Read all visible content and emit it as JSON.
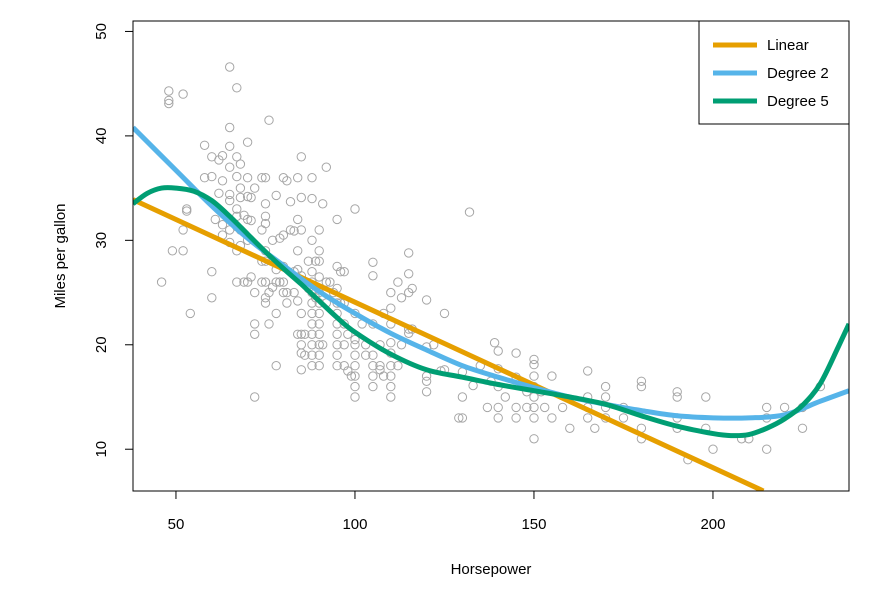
{
  "chart_data": {
    "type": "scatter",
    "xlabel": "Horsepower",
    "ylabel": "Miles per gallon",
    "xlim": [
      38,
      238
    ],
    "ylim": [
      6,
      51
    ],
    "x_ticks": [
      50,
      100,
      150,
      200
    ],
    "y_ticks": [
      10,
      20,
      30,
      40,
      50
    ],
    "grid": false,
    "legend_position": "top-right",
    "point_color": "#a6a6a6",
    "points": [
      [
        46,
        26
      ],
      [
        48,
        44.3
      ],
      [
        48,
        43.4
      ],
      [
        48,
        43.1
      ],
      [
        49,
        29
      ],
      [
        52,
        44
      ],
      [
        52,
        31
      ],
      [
        52,
        29
      ],
      [
        53,
        33
      ],
      [
        53,
        32.8
      ],
      [
        54,
        23
      ],
      [
        58,
        39.1
      ],
      [
        58,
        36
      ],
      [
        60,
        38
      ],
      [
        60,
        36.1
      ],
      [
        60,
        27
      ],
      [
        60,
        24.5
      ],
      [
        61,
        32
      ],
      [
        62,
        37.7
      ],
      [
        62,
        34.5
      ],
      [
        63,
        38.1
      ],
      [
        63,
        35.7
      ],
      [
        63,
        31.5
      ],
      [
        63,
        30.5
      ],
      [
        65,
        46.6
      ],
      [
        65,
        40.8
      ],
      [
        65,
        39
      ],
      [
        65,
        37
      ],
      [
        65,
        34.4
      ],
      [
        65,
        33.8
      ],
      [
        65,
        31
      ],
      [
        65,
        29.8
      ],
      [
        67,
        44.6
      ],
      [
        67,
        38
      ],
      [
        67,
        36.1
      ],
      [
        67,
        33
      ],
      [
        67,
        32.3
      ],
      [
        67,
        31.3
      ],
      [
        67,
        29
      ],
      [
        67,
        26
      ],
      [
        68,
        37.3
      ],
      [
        68,
        35
      ],
      [
        68,
        34.1
      ],
      [
        68,
        31
      ],
      [
        68,
        29.5
      ],
      [
        69,
        32.4
      ],
      [
        69,
        26
      ],
      [
        70,
        39.4
      ],
      [
        70,
        36
      ],
      [
        70,
        34.2
      ],
      [
        70,
        32
      ],
      [
        70,
        30
      ],
      [
        70,
        26
      ],
      [
        71,
        34.1
      ],
      [
        71,
        31.9
      ],
      [
        71,
        26.5
      ],
      [
        72,
        35
      ],
      [
        72,
        25
      ],
      [
        72,
        22
      ],
      [
        72,
        21
      ],
      [
        72,
        15
      ],
      [
        74,
        36
      ],
      [
        74,
        31
      ],
      [
        74,
        28
      ],
      [
        74,
        26
      ],
      [
        75,
        36
      ],
      [
        75,
        33.5
      ],
      [
        75,
        32.3
      ],
      [
        75,
        31.6
      ],
      [
        75,
        29
      ],
      [
        75,
        28
      ],
      [
        75,
        26
      ],
      [
        75,
        24
      ],
      [
        75,
        24.5
      ],
      [
        76,
        41.5
      ],
      [
        76,
        25
      ],
      [
        76,
        22
      ],
      [
        77,
        30
      ],
      [
        77,
        25.5
      ],
      [
        78,
        34.3
      ],
      [
        78,
        27.2
      ],
      [
        78,
        26
      ],
      [
        78,
        23
      ],
      [
        78,
        18
      ],
      [
        79,
        30.2
      ],
      [
        79,
        26
      ],
      [
        80,
        36
      ],
      [
        80,
        30.5
      ],
      [
        80,
        27.5
      ],
      [
        80,
        26
      ],
      [
        80,
        25
      ],
      [
        81,
        35.7
      ],
      [
        81,
        25
      ],
      [
        81,
        24
      ],
      [
        82,
        33.7
      ],
      [
        82,
        31
      ],
      [
        83,
        30.9
      ],
      [
        83,
        27
      ],
      [
        83,
        25
      ],
      [
        84,
        36
      ],
      [
        84,
        32
      ],
      [
        84,
        29
      ],
      [
        84,
        27.2
      ],
      [
        84,
        24.2
      ],
      [
        84,
        21
      ],
      [
        85,
        38
      ],
      [
        85,
        34.1
      ],
      [
        85,
        31
      ],
      [
        85,
        26.6
      ],
      [
        85,
        23
      ],
      [
        85,
        21
      ],
      [
        85,
        20
      ],
      [
        85,
        19.2
      ],
      [
        85,
        17.6
      ],
      [
        86,
        21
      ],
      [
        86,
        19
      ],
      [
        87,
        28
      ],
      [
        87,
        25.4
      ],
      [
        88,
        36
      ],
      [
        88,
        34
      ],
      [
        88,
        30
      ],
      [
        88,
        27
      ],
      [
        88,
        26
      ],
      [
        88,
        25
      ],
      [
        88,
        24
      ],
      [
        88,
        23
      ],
      [
        88,
        22
      ],
      [
        88,
        21
      ],
      [
        88,
        20
      ],
      [
        88,
        19
      ],
      [
        88,
        18
      ],
      [
        89,
        28
      ],
      [
        89,
        24.5
      ],
      [
        90,
        31
      ],
      [
        90,
        29
      ],
      [
        90,
        28
      ],
      [
        90,
        26.5
      ],
      [
        90,
        25
      ],
      [
        90,
        24
      ],
      [
        90,
        23
      ],
      [
        90,
        22
      ],
      [
        90,
        21
      ],
      [
        90,
        20
      ],
      [
        90,
        19
      ],
      [
        90,
        18
      ],
      [
        91,
        33.5
      ],
      [
        91,
        20
      ],
      [
        92,
        37
      ],
      [
        92,
        26
      ],
      [
        92,
        24
      ],
      [
        93,
        26
      ],
      [
        94,
        25
      ],
      [
        95,
        32
      ],
      [
        95,
        27.5
      ],
      [
        95,
        25.4
      ],
      [
        95,
        24
      ],
      [
        95,
        23
      ],
      [
        95,
        22
      ],
      [
        95,
        21
      ],
      [
        95,
        20
      ],
      [
        95,
        19
      ],
      [
        95,
        18
      ],
      [
        96,
        27
      ],
      [
        96,
        24
      ],
      [
        97,
        27
      ],
      [
        97,
        24
      ],
      [
        97,
        22
      ],
      [
        97,
        20
      ],
      [
        97,
        18
      ],
      [
        98,
        21
      ],
      [
        98,
        17.5
      ],
      [
        99,
        17
      ],
      [
        100,
        33
      ],
      [
        100,
        23
      ],
      [
        100,
        20.5
      ],
      [
        100,
        20
      ],
      [
        100,
        19
      ],
      [
        100,
        18
      ],
      [
        100,
        17
      ],
      [
        100,
        16
      ],
      [
        100,
        15
      ],
      [
        102,
        22
      ],
      [
        103,
        20
      ],
      [
        103,
        19
      ],
      [
        105,
        27.9
      ],
      [
        105,
        26.6
      ],
      [
        105,
        22
      ],
      [
        105,
        19
      ],
      [
        105,
        18
      ],
      [
        105,
        17
      ],
      [
        105,
        16
      ],
      [
        107,
        20
      ],
      [
        107,
        18
      ],
      [
        107,
        17.6
      ],
      [
        108,
        23
      ],
      [
        108,
        17
      ],
      [
        110,
        25
      ],
      [
        110,
        23.5
      ],
      [
        110,
        22
      ],
      [
        110,
        20.2
      ],
      [
        110,
        19.2
      ],
      [
        110,
        18
      ],
      [
        110,
        17
      ],
      [
        110,
        16
      ],
      [
        110,
        15
      ],
      [
        112,
        26
      ],
      [
        112,
        18
      ],
      [
        113,
        24.5
      ],
      [
        113,
        20
      ],
      [
        115,
        28.8
      ],
      [
        115,
        26.8
      ],
      [
        115,
        25
      ],
      [
        115,
        21.5
      ],
      [
        115,
        21.1
      ],
      [
        116,
        25.4
      ],
      [
        116,
        21.5
      ],
      [
        120,
        24.3
      ],
      [
        120,
        19.8
      ],
      [
        120,
        17
      ],
      [
        120,
        16.5
      ],
      [
        120,
        15.5
      ],
      [
        122,
        20
      ],
      [
        124,
        17.5
      ],
      [
        125,
        23
      ],
      [
        125,
        17.6
      ],
      [
        129,
        13
      ],
      [
        130,
        17.4
      ],
      [
        130,
        15
      ],
      [
        130,
        13
      ],
      [
        132,
        32.7
      ],
      [
        133,
        16.1
      ],
      [
        135,
        18
      ],
      [
        137,
        14
      ],
      [
        138,
        16.5
      ],
      [
        139,
        20.2
      ],
      [
        140,
        19.4
      ],
      [
        140,
        17.7
      ],
      [
        140,
        16
      ],
      [
        140,
        14
      ],
      [
        140,
        13
      ],
      [
        142,
        15
      ],
      [
        145,
        19.2
      ],
      [
        145,
        16.9
      ],
      [
        145,
        14
      ],
      [
        145,
        13
      ],
      [
        148,
        15.5
      ],
      [
        148,
        14
      ],
      [
        150,
        18.6
      ],
      [
        150,
        18.1
      ],
      [
        150,
        17
      ],
      [
        150,
        16
      ],
      [
        150,
        15
      ],
      [
        150,
        14
      ],
      [
        150,
        13
      ],
      [
        150,
        11
      ],
      [
        152,
        15.5
      ],
      [
        153,
        14
      ],
      [
        155,
        17
      ],
      [
        155,
        13
      ],
      [
        158,
        14
      ],
      [
        160,
        12
      ],
      [
        165,
        17.5
      ],
      [
        165,
        15
      ],
      [
        165,
        14
      ],
      [
        165,
        13
      ],
      [
        167,
        12
      ],
      [
        170,
        16
      ],
      [
        170,
        15
      ],
      [
        170,
        14
      ],
      [
        170,
        13
      ],
      [
        175,
        14
      ],
      [
        175,
        13
      ],
      [
        180,
        16.5
      ],
      [
        180,
        16
      ],
      [
        180,
        12
      ],
      [
        180,
        11
      ],
      [
        190,
        15.5
      ],
      [
        190,
        15
      ],
      [
        190,
        13
      ],
      [
        190,
        12
      ],
      [
        193,
        9
      ],
      [
        198,
        15
      ],
      [
        198,
        12
      ],
      [
        200,
        10
      ],
      [
        208,
        11
      ],
      [
        210,
        11
      ],
      [
        215,
        14
      ],
      [
        215,
        13
      ],
      [
        215,
        10
      ],
      [
        220,
        14
      ],
      [
        225,
        12
      ],
      [
        225,
        14
      ],
      [
        230,
        16
      ]
    ],
    "series": [
      {
        "name": "Linear",
        "type": "line",
        "color": "#e69f00",
        "x": [
          38,
          214.1
        ],
        "y": [
          33.9,
          6
        ]
      },
      {
        "name": "Degree 2",
        "type": "line",
        "color": "#56b4e9",
        "x": [
          38,
          50,
          60,
          70,
          80,
          90,
          100,
          110,
          120,
          130,
          140,
          150,
          160,
          170,
          180,
          190,
          200,
          210,
          220,
          230,
          238
        ],
        "y": [
          40.8,
          36.7,
          33.3,
          30.2,
          27.6,
          25.1,
          23,
          21.1,
          19.5,
          18,
          16.9,
          15.9,
          15,
          14.3,
          13.7,
          13.2,
          13,
          13,
          13.3,
          14.6,
          15.6
        ]
      },
      {
        "name": "Degree 5",
        "type": "line",
        "color": "#009e73",
        "x": [
          38,
          42,
          46,
          50,
          55,
          60,
          65,
          70,
          75,
          80,
          85,
          90,
          95,
          100,
          110,
          120,
          130,
          140,
          150,
          160,
          170,
          180,
          190,
          200,
          205,
          210,
          215,
          220,
          225,
          230,
          235,
          238
        ],
        "y": [
          33.5,
          34.5,
          35,
          35,
          34.7,
          33.8,
          32.3,
          30.6,
          28.9,
          27.3,
          25.8,
          24.2,
          22.6,
          21.2,
          19.1,
          17.6,
          16.9,
          16.2,
          15.6,
          15,
          14.3,
          13.2,
          12.2,
          11.5,
          11.3,
          11.4,
          12,
          12.9,
          14.2,
          16.3,
          19.8,
          22
        ]
      }
    ]
  }
}
